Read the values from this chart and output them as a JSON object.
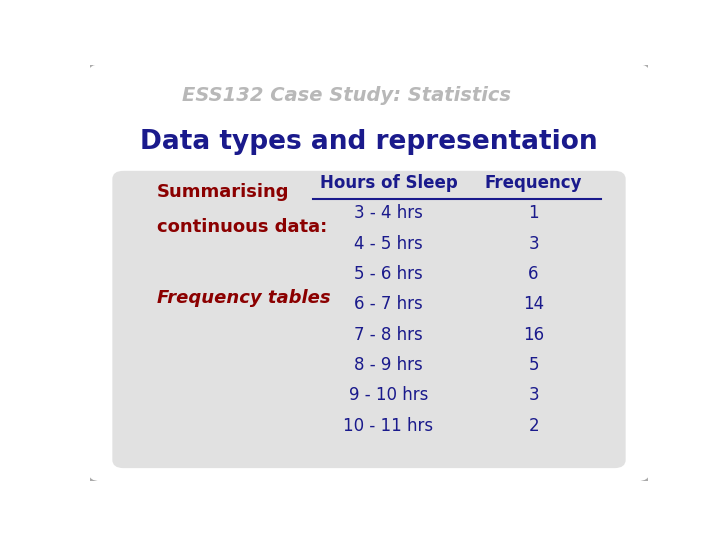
{
  "title": "Data types and representation",
  "header_text": "ESS132 Case Study: Statistics",
  "slide_bg": "#ffffff",
  "table_bg": "#d8d8d8",
  "title_color": "#1a1a8c",
  "left_label1": "Summarising",
  "left_label2": "continuous data:",
  "left_label3": "Frequency tables",
  "left_label_color": "#8b0000",
  "col1_header": "Hours of Sleep",
  "col2_header": "Frequency",
  "col_header_color": "#1a1a8c",
  "table_rows": [
    [
      "3 - 4 hrs",
      "1"
    ],
    [
      "4 - 5 hrs",
      "3"
    ],
    [
      "5 - 6 hrs",
      "6"
    ],
    [
      "6 - 7 hrs",
      "14"
    ],
    [
      "7 - 8 hrs",
      "16"
    ],
    [
      "8 - 9 hrs",
      "5"
    ],
    [
      "9 - 10 hrs",
      "3"
    ],
    [
      "10 - 11 hrs",
      "2"
    ]
  ],
  "table_text_color": "#1a1a8c",
  "figsize": [
    7.2,
    5.4
  ],
  "dpi": 100
}
